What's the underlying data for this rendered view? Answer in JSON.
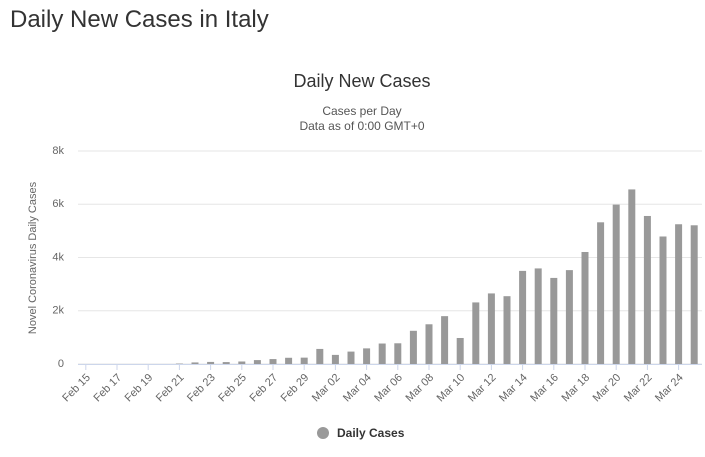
{
  "page_title": "Daily New Cases in Italy",
  "chart_data": {
    "type": "bar",
    "title": "Daily New Cases",
    "subtitle": [
      "Cases per Day",
      "Data as of 0:00 GMT+0"
    ],
    "y_label": "Novel Coronavirus Daily Cases",
    "categories": [
      "Feb 15",
      null,
      "Feb 17",
      null,
      "Feb 19",
      null,
      "Feb 21",
      null,
      "Feb 23",
      null,
      "Feb 25",
      null,
      "Feb 27",
      null,
      "Feb 29",
      null,
      "Mar 02",
      null,
      "Mar 04",
      null,
      "Mar 06",
      null,
      "Mar 08",
      null,
      "Mar 10",
      null,
      "Mar 12",
      null,
      "Mar 14",
      null,
      "Mar 16",
      null,
      "Mar 18",
      null,
      "Mar 20",
      null,
      "Mar 22",
      null,
      "Mar 24",
      null
    ],
    "series": [
      {
        "name": "Daily Cases",
        "color": "#999999",
        "values": [
          0,
          0,
          0,
          0,
          0,
          0,
          17,
          59,
          78,
          72,
          94,
          147,
          185,
          234,
          239,
          566,
          342,
          466,
          587,
          769,
          778,
          1247,
          1492,
          1797,
          977,
          2313,
          2651,
          2547,
          3497,
          3590,
          3233,
          3526,
          4207,
          5322,
          5986,
          6557,
          5560,
          4789,
          5249,
          5210
        ]
      }
    ],
    "ylim": [
      0,
      8000
    ],
    "yticks": [
      0,
      {
        "value": 2000,
        "label": "2k"
      },
      {
        "value": 4000,
        "label": "4k"
      },
      {
        "value": 6000,
        "label": "6k"
      },
      {
        "value": 8000,
        "label": "8k"
      }
    ],
    "grid": true,
    "legend": "bottom"
  }
}
